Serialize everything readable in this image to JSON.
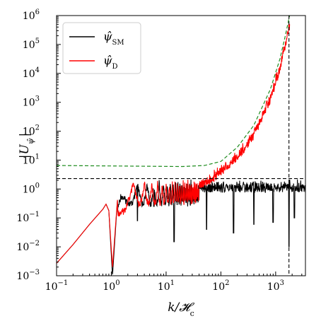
{
  "chart_data": {
    "type": "line",
    "title": "",
    "xlabel": "k/𝓗",
    "xlabel_sub": "c",
    "ylabel": "|U",
    "ylabel_sub": "ψ̂",
    "xscale": "log",
    "yscale": "log",
    "xlim": [
      0.1,
      3500
    ],
    "ylim": [
      0.001,
      1000000
    ],
    "xticks": [
      {
        "value": 0.1,
        "base": "10",
        "exp": "−1"
      },
      {
        "value": 1,
        "base": "10",
        "exp": "0"
      },
      {
        "value": 10,
        "base": "10",
        "exp": "1"
      },
      {
        "value": 100,
        "base": "10",
        "exp": "2"
      },
      {
        "value": 1000,
        "base": "10",
        "exp": "3"
      }
    ],
    "yticks": [
      {
        "value": 0.001,
        "base": "10",
        "exp": "−3"
      },
      {
        "value": 0.01,
        "base": "10",
        "exp": "−2"
      },
      {
        "value": 0.1,
        "base": "10",
        "exp": "−1"
      },
      {
        "value": 1,
        "base": "10",
        "exp": "0"
      },
      {
        "value": 10,
        "base": "10",
        "exp": "1"
      },
      {
        "value": 100,
        "base": "10",
        "exp": "2"
      },
      {
        "value": 1000,
        "base": "10",
        "exp": "3"
      },
      {
        "value": 10000,
        "base": "10",
        "exp": "4"
      },
      {
        "value": 100000,
        "base": "10",
        "exp": "5"
      },
      {
        "value": 1000000,
        "base": "10",
        "exp": "6"
      }
    ],
    "legend_position": "top-left",
    "grid": false,
    "series": [
      {
        "name": "ψ̂",
        "name_sub": "SM",
        "color": "#000000",
        "envelope": [
          [
            0.1,
            0.0027
          ],
          [
            0.2,
            0.012
          ],
          [
            0.4,
            0.06
          ],
          [
            0.7,
            0.2
          ],
          [
            0.8,
            0.3
          ],
          [
            0.9,
            0.18
          ],
          [
            1.05,
            0.001
          ],
          [
            1.3,
            0.5
          ],
          [
            2,
            2.0
          ],
          [
            5,
            2.1
          ],
          [
            20,
            2.2
          ],
          [
            100,
            2.2
          ],
          [
            1000,
            2.2
          ],
          [
            3500,
            2.2
          ]
        ],
        "dips": [
          [
            3,
            0.08
          ],
          [
            6,
            0.25
          ],
          [
            14,
            0.015
          ],
          [
            55,
            0.04
          ],
          [
            170,
            0.03
          ],
          [
            400,
            0.06
          ],
          [
            900,
            0.07
          ],
          [
            1750,
            0.01
          ],
          [
            2200,
            0.1
          ]
        ]
      },
      {
        "name": "ψ̂",
        "name_sub": "D",
        "color": "#ff0000",
        "envelope": [
          [
            0.1,
            0.0027
          ],
          [
            0.2,
            0.012
          ],
          [
            0.4,
            0.06
          ],
          [
            0.7,
            0.2
          ],
          [
            0.8,
            0.3
          ],
          [
            0.9,
            0.18
          ],
          [
            1.05,
            0.002
          ],
          [
            1.3,
            0.5
          ],
          [
            2,
            2.0
          ],
          [
            10,
            2.2
          ],
          [
            30,
            2.5
          ],
          [
            60,
            3.5
          ],
          [
            100,
            8
          ],
          [
            200,
            25
          ],
          [
            400,
            150
          ],
          [
            800,
            2500
          ],
          [
            1200,
            30000
          ],
          [
            1500,
            200000
          ],
          [
            1800,
            1000000
          ]
        ]
      },
      {
        "name": "",
        "color": "#1f8c1f",
        "dashed": true,
        "points": [
          [
            0.1,
            6.5
          ],
          [
            20,
            6.0
          ],
          [
            50,
            6.5
          ],
          [
            100,
            9
          ],
          [
            200,
            28
          ],
          [
            400,
            160
          ],
          [
            800,
            2800
          ],
          [
            1200,
            32000
          ],
          [
            1500,
            200000
          ],
          [
            1800,
            1000000
          ]
        ]
      }
    ],
    "reference_lines": [
      {
        "orientation": "horizontal",
        "value": 2.3,
        "color": "#000000",
        "dashed": true
      },
      {
        "orientation": "vertical",
        "value": 1750,
        "color": "#000000",
        "dashed": true
      }
    ]
  }
}
